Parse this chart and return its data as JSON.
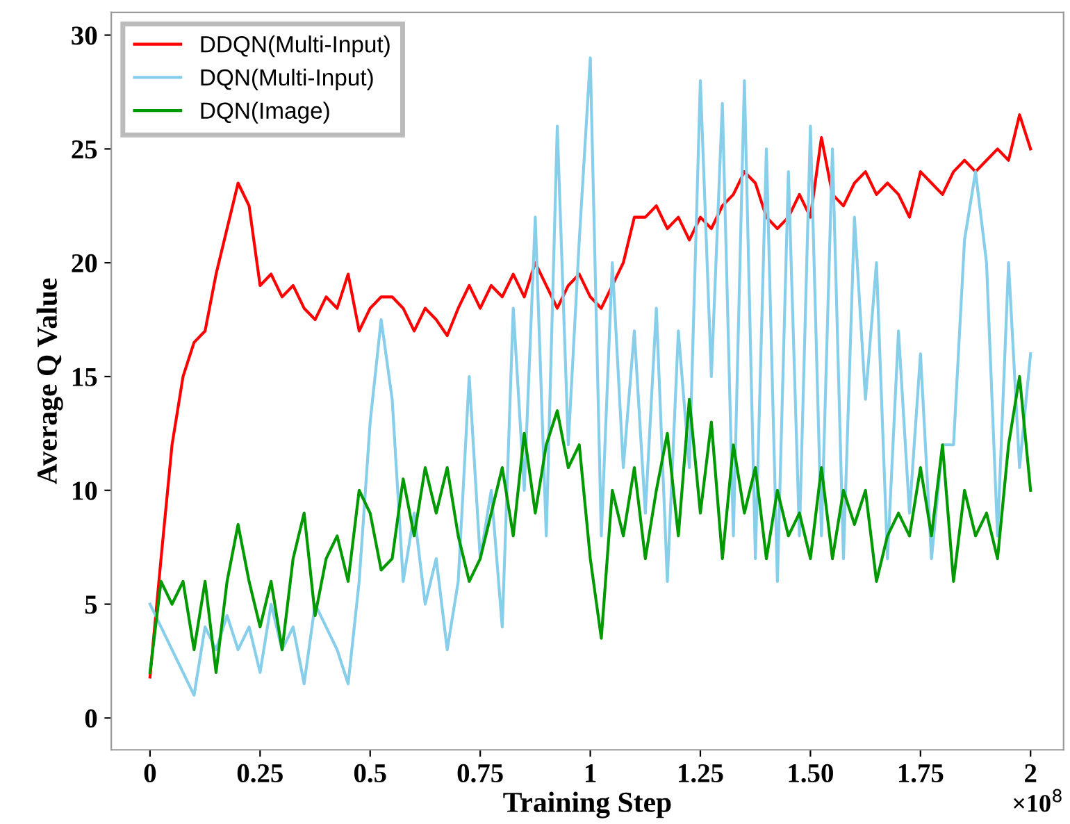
{
  "chart_data": {
    "type": "line",
    "xlabel": "Training Step",
    "ylabel": "Average Q Value",
    "x": [
      0,
      0.025,
      0.05,
      0.075,
      0.1,
      0.125,
      0.15,
      0.175,
      0.2,
      0.225,
      0.25,
      0.275,
      0.3,
      0.325,
      0.35,
      0.375,
      0.4,
      0.425,
      0.45,
      0.475,
      0.5,
      0.525,
      0.55,
      0.575,
      0.6,
      0.625,
      0.65,
      0.675,
      0.7,
      0.725,
      0.75,
      0.775,
      0.8,
      0.825,
      0.85,
      0.875,
      0.9,
      0.925,
      0.95,
      0.975,
      1,
      1.025,
      1.05,
      1.075,
      1.1,
      1.125,
      1.15,
      1.175,
      1.2,
      1.225,
      1.25,
      1.275,
      1.3,
      1.325,
      1.35,
      1.375,
      1.4,
      1.425,
      1.45,
      1.475,
      1.5,
      1.525,
      1.55,
      1.575,
      1.6,
      1.625,
      1.65,
      1.675,
      1.7,
      1.725,
      1.75,
      1.775,
      1.8,
      1.825,
      1.85,
      1.875,
      1.9,
      1.925,
      1.95,
      1.975,
      2
    ],
    "series": [
      {
        "name": "DDQN(Multi-Input)",
        "color": "#ff0000",
        "values": [
          1.8,
          7,
          12,
          15,
          16.5,
          17,
          19.5,
          21.5,
          23.5,
          22.5,
          19,
          19.5,
          18.5,
          19,
          18,
          17.5,
          18.5,
          18,
          19.5,
          17,
          18,
          18.5,
          18.5,
          18,
          17,
          18,
          17.5,
          16.8,
          18,
          19,
          18,
          19,
          18.5,
          19.5,
          18.5,
          20,
          19,
          18,
          19,
          19.5,
          18.5,
          18,
          19,
          20,
          22,
          22,
          22.5,
          21.5,
          22,
          21,
          22,
          21.5,
          22.5,
          23,
          24,
          23.5,
          22,
          21.5,
          22,
          23,
          22,
          25.5,
          23,
          22.5,
          23.5,
          24,
          23,
          23.5,
          23,
          22,
          24,
          23.5,
          23,
          24,
          24.5,
          24,
          24.5,
          25,
          24.5,
          26.5,
          25
        ]
      },
      {
        "name": "DQN(Multi-Input)",
        "color": "#87ceeb",
        "values": [
          5,
          4,
          3,
          2,
          1,
          4,
          3,
          4.5,
          3,
          4,
          2,
          5,
          3,
          4,
          1.5,
          5,
          4,
          3,
          1.5,
          6,
          13,
          17.5,
          14,
          6,
          9,
          5,
          7,
          3,
          6,
          15,
          7,
          10,
          4,
          18,
          10,
          22,
          8,
          26,
          12,
          21,
          29,
          8,
          20,
          11,
          17,
          9,
          18,
          6,
          17,
          11,
          28,
          15,
          27,
          8,
          28,
          7,
          25,
          6,
          24,
          8,
          26,
          8,
          25,
          7,
          22,
          14,
          20,
          7,
          17,
          9,
          16,
          7,
          12,
          12,
          21,
          24,
          20,
          8,
          20,
          11,
          16
        ]
      },
      {
        "name": "DQN(Image)",
        "color": "#009900",
        "values": [
          2,
          6,
          5,
          6,
          3,
          6,
          2,
          6,
          8.5,
          6,
          4,
          6,
          3,
          7,
          9,
          4.5,
          7,
          8,
          6,
          10,
          9,
          6.5,
          7,
          10.5,
          8,
          11,
          9,
          11,
          8,
          6,
          7,
          9,
          11,
          8,
          12.5,
          9,
          12,
          13.5,
          11,
          12,
          7,
          3.5,
          10,
          8,
          11,
          7,
          10,
          12.5,
          8,
          14,
          9,
          13,
          7,
          12,
          9,
          11,
          7,
          10,
          8,
          9,
          7,
          11,
          7,
          10,
          8.5,
          10,
          6,
          8,
          9,
          8,
          11,
          8,
          12,
          6,
          10,
          8,
          9,
          7,
          12,
          15,
          10
        ]
      }
    ],
    "xlim": [
      -0.088,
      2.075
    ],
    "ylim": [
      -1.4,
      31
    ],
    "xticks": [
      0,
      0.25,
      0.5,
      0.75,
      1,
      1.25,
      {
        "value": 1.5,
        "label": "1.50"
      },
      1.75,
      2
    ],
    "yticks": [
      0,
      5,
      10,
      15,
      20,
      25,
      30
    ],
    "annotations": [
      "×10$^{8}$"
    ],
    "legend": "top left",
    "grid": false,
    "marker": "none",
    "line_style": "solid"
  }
}
